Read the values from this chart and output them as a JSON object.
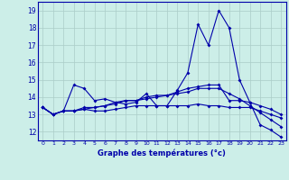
{
  "xlabel": "Graphe des températures (°c)",
  "background_color": "#cceee8",
  "grid_color": "#aaccc8",
  "line_color": "#0000aa",
  "xlim": [
    -0.5,
    23.5
  ],
  "ylim": [
    11.5,
    19.5
  ],
  "yticks": [
    12,
    13,
    14,
    15,
    16,
    17,
    18,
    19
  ],
  "xticks": [
    0,
    1,
    2,
    3,
    4,
    5,
    6,
    7,
    8,
    9,
    10,
    11,
    12,
    13,
    14,
    15,
    16,
    17,
    18,
    19,
    20,
    21,
    22,
    23
  ],
  "series": [
    [
      13.4,
      13.0,
      13.2,
      14.7,
      14.5,
      13.8,
      13.9,
      13.7,
      13.6,
      13.7,
      14.2,
      13.5,
      13.5,
      14.4,
      15.4,
      18.2,
      17.0,
      19.0,
      18.0,
      15.0,
      13.7,
      12.4,
      12.1,
      11.7
    ],
    [
      13.4,
      13.0,
      13.2,
      13.2,
      13.3,
      13.4,
      13.5,
      13.7,
      13.8,
      13.8,
      14.0,
      14.1,
      14.1,
      14.3,
      14.5,
      14.6,
      14.7,
      14.7,
      13.8,
      13.8,
      13.7,
      13.5,
      13.3,
      13.0
    ],
    [
      13.4,
      13.0,
      13.2,
      13.2,
      13.4,
      13.4,
      13.5,
      13.6,
      13.8,
      13.8,
      13.9,
      14.0,
      14.1,
      14.2,
      14.3,
      14.5,
      14.5,
      14.5,
      14.2,
      13.9,
      13.5,
      13.1,
      12.7,
      12.3
    ],
    [
      13.4,
      13.0,
      13.2,
      13.2,
      13.3,
      13.2,
      13.2,
      13.3,
      13.4,
      13.5,
      13.5,
      13.5,
      13.5,
      13.5,
      13.5,
      13.6,
      13.5,
      13.5,
      13.4,
      13.4,
      13.4,
      13.2,
      13.0,
      12.8
    ]
  ]
}
